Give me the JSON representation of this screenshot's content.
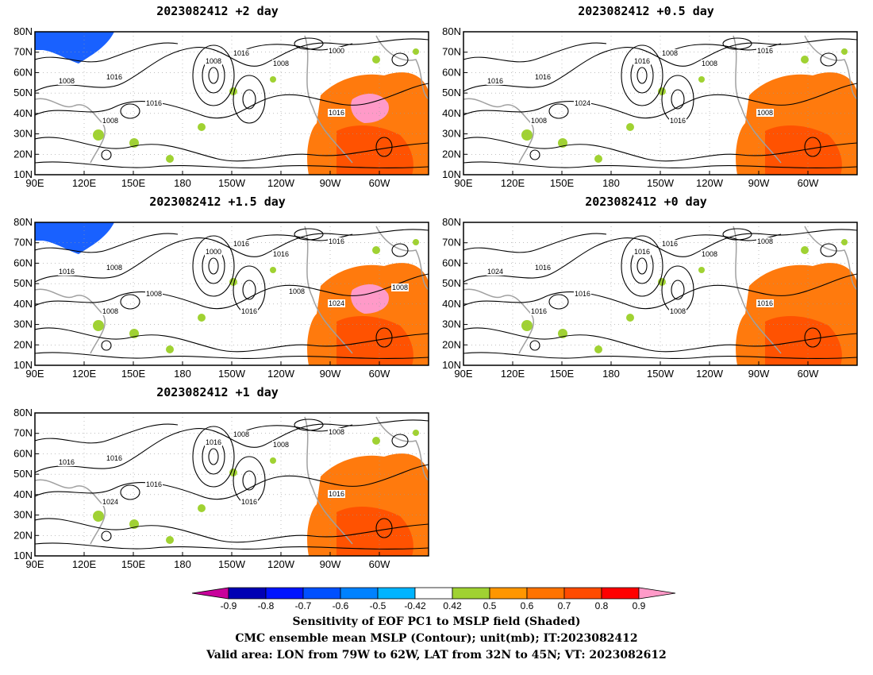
{
  "panels": [
    {
      "id": "p1",
      "title": "2023082412 +2 day",
      "contour_labels": [
        "1016",
        "1016",
        "1008",
        "1000",
        "1008",
        "1016",
        "1008",
        "1008",
        "1016"
      ],
      "ocean_pink": true
    },
    {
      "id": "p2",
      "title": "2023082412 +0.5 day",
      "contour_labels": [
        "1016",
        "1008",
        "1016",
        "1016",
        "1008",
        "1024",
        "1016",
        "1008",
        "1008",
        "1016"
      ],
      "ocean_pink": false
    },
    {
      "id": "p3",
      "title": "2023082412 +1.5 day",
      "contour_labels": [
        "1008",
        "1016",
        "1000",
        "1016",
        "1016",
        "1008",
        "1016",
        "1008",
        "1024",
        "1016",
        "1008",
        "1008"
      ],
      "ocean_pink": true
    },
    {
      "id": "p4",
      "title": "2023082412 +0 day",
      "contour_labels": [
        "1016",
        "1016",
        "1016",
        "1008",
        "1008",
        "1016",
        "1024",
        "1016",
        "1016",
        "1008"
      ],
      "ocean_pink": false
    },
    {
      "id": "p5",
      "title": "2023082412 +1 day",
      "contour_labels": [
        "1016",
        "1008",
        "1016",
        "1008",
        "1008",
        "1016",
        "1016",
        "1024",
        "1016",
        "1016"
      ],
      "ocean_pink": false
    }
  ],
  "map_axes": {
    "lat_labels": [
      "80N",
      "70N",
      "60N",
      "50N",
      "40N",
      "30N",
      "20N",
      "10N"
    ],
    "lon_labels": [
      "90E",
      "120E",
      "150E",
      "180",
      "150W",
      "120W",
      "90W",
      "60W"
    ]
  },
  "colorbar": {
    "ticks": [
      "-0.9",
      "-0.8",
      "-0.7",
      "-0.6",
      "-0.5",
      "-0.42",
      "0.42",
      "0.5",
      "0.6",
      "0.7",
      "0.8",
      "0.9"
    ],
    "colors": [
      "#0000b4",
      "#0014ff",
      "#0050ff",
      "#0082ff",
      "#00b4ff",
      "#ffffff",
      "#a0d232",
      "#ff9600",
      "#ff7300",
      "#ff4b00",
      "#ff0000"
    ],
    "left_arrow_color": "#c8009b",
    "right_arrow_color": "#ff9ac8"
  },
  "captions": [
    "Sensitivity of EOF PC1 to MSLP field (Shaded)",
    "CMC ensemble mean MSLP (Contour); unit(mb); IT:2023082412",
    "Valid area: LON from 79W to 62W, LAT from 32N to 45N; VT: 2023082612"
  ]
}
